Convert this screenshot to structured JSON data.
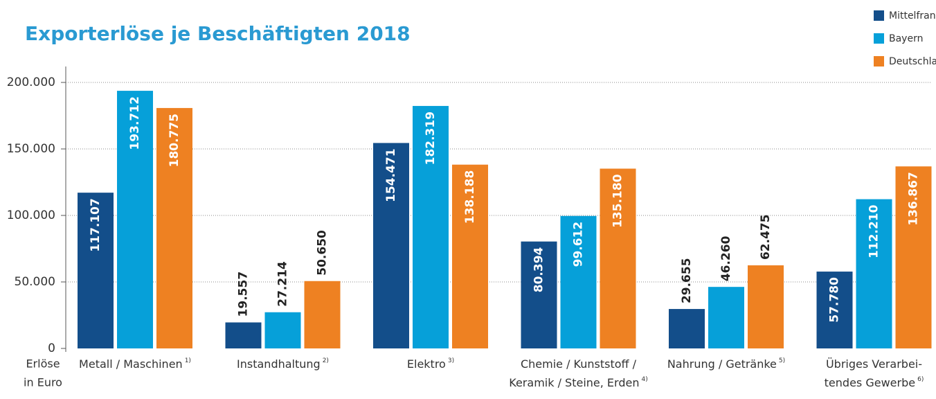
{
  "chart_data": {
    "type": "bar",
    "title": "Exporterlöse je Beschäftigten 2018",
    "y_label": [
      "Erlöse",
      "in Euro"
    ],
    "categories": [
      [
        "Metall / Maschinen"
      ],
      [
        "Instandhaltung"
      ],
      [
        "Elektro"
      ],
      [
        "Chemie / Kunststoff /",
        "Keramik / Steine, Erden"
      ],
      [
        "Nahrung / Getränke"
      ],
      [
        "Übriges Verarbei-",
        "tendes Gewerbe"
      ]
    ],
    "category_notes": [
      "1)",
      "2)",
      "3)",
      "4)",
      "5)",
      "6)"
    ],
    "value_labels_outside": [
      false,
      true,
      false,
      false,
      true,
      false
    ],
    "series": [
      {
        "name": "Mittelfranken",
        "color": "#134e8a",
        "values": [
          117107,
          19557,
          154471,
          80394,
          29655,
          57780
        ],
        "value_labels": [
          "117.107",
          "19.557",
          "154.471",
          "80.394",
          "29.655",
          "57.780"
        ]
      },
      {
        "name": "Bayern",
        "color": "#06a0d9",
        "values": [
          193712,
          27214,
          182319,
          99612,
          46260,
          112210
        ],
        "value_labels": [
          "193.712",
          "27.214",
          "182.319",
          "99.612",
          "46.260",
          "112.210"
        ]
      },
      {
        "name": "Deutschland",
        "color": "#ee8122",
        "values": [
          180775,
          50650,
          138188,
          135180,
          62475,
          136867
        ],
        "value_labels": [
          "180.775",
          "50.650",
          "138.188",
          "135.180",
          "62.475",
          "136.867"
        ]
      }
    ],
    "ylim": [
      0,
      200000
    ],
    "yticks": [
      0,
      {
        "value": 50000,
        "label": "50.000"
      },
      {
        "value": 100000,
        "label": "100.000"
      },
      {
        "value": 150000,
        "label": "150.000"
      },
      {
        "value": 200000,
        "label": "200.000"
      }
    ],
    "grid": true,
    "legend": "top-right"
  }
}
